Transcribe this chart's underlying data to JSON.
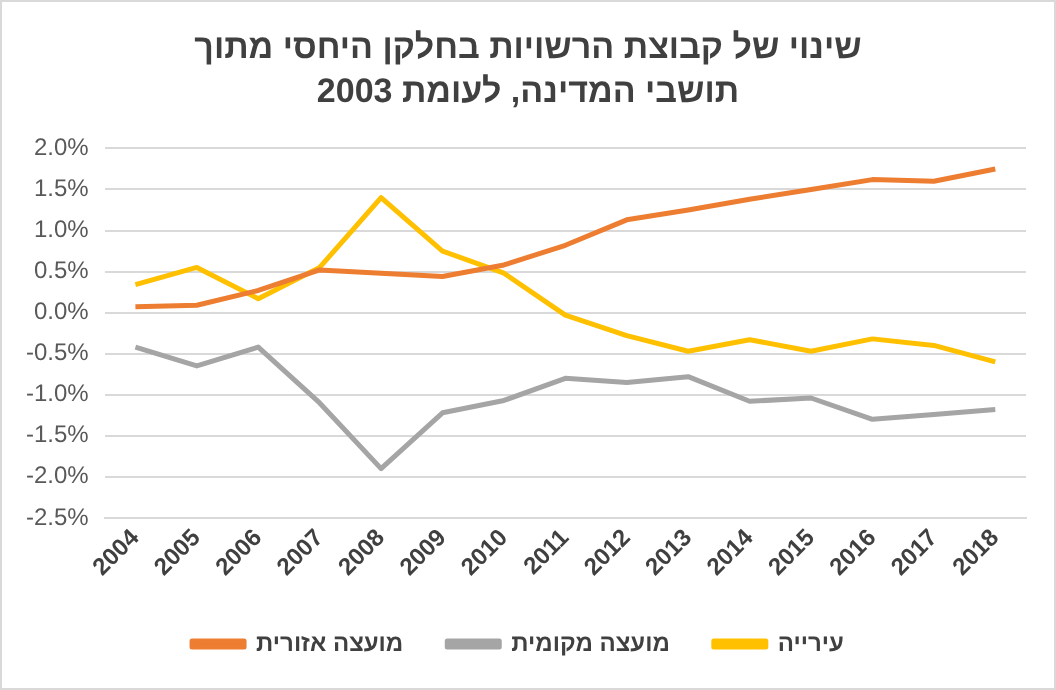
{
  "chart_data": {
    "type": "line",
    "title": "שינוי של קבוצת הרשויות בחלקן היחסי מתוך תושבי המדינה, לעומת 2003",
    "categories": [
      "2004",
      "2005",
      "2006",
      "2007",
      "2008",
      "2009",
      "2010",
      "2011",
      "2012",
      "2013",
      "2014",
      "2015",
      "2016",
      "2017",
      "2018"
    ],
    "series": [
      {
        "name": "מועצה אזורית",
        "color": "#ed7d31",
        "values": [
          0.07,
          0.09,
          0.27,
          0.52,
          0.48,
          0.44,
          0.58,
          0.82,
          1.13,
          1.25,
          1.38,
          1.5,
          1.62,
          1.6,
          1.75
        ]
      },
      {
        "name": "מועצה מקומית",
        "color": "#a5a5a5",
        "values": [
          -0.42,
          -0.65,
          -0.42,
          -1.1,
          -1.9,
          -1.22,
          -1.07,
          -0.8,
          -0.85,
          -0.78,
          -1.08,
          -1.04,
          -1.3,
          -1.24,
          -1.18
        ]
      },
      {
        "name": "עירייה",
        "color": "#ffc000",
        "values": [
          0.34,
          0.55,
          0.17,
          0.55,
          1.4,
          0.75,
          0.48,
          -0.03,
          -0.28,
          -0.47,
          -0.33,
          -0.47,
          -0.32,
          -0.4,
          -0.6
        ]
      }
    ],
    "ylim": [
      -2.5,
      2.0
    ],
    "yticks": [
      {
        "value": -2.5,
        "label": "-2.5%"
      },
      {
        "value": -2.0,
        "label": "-2.0%"
      },
      {
        "value": -1.5,
        "label": "-1.5%"
      },
      {
        "value": -1.0,
        "label": "-1.0%"
      },
      {
        "value": -0.5,
        "label": "-0.5%"
      },
      {
        "value": 0,
        "label": "0.0%"
      },
      {
        "value": 0.5,
        "label": "0.5%"
      },
      {
        "value": 1.0,
        "label": "1.0%"
      },
      {
        "value": 1.5,
        "label": "1.5%"
      },
      {
        "value": 2.0,
        "label": "2.0%"
      }
    ],
    "grid": "y",
    "legend": "bottom",
    "marker": "none",
    "line_style": "solid"
  }
}
